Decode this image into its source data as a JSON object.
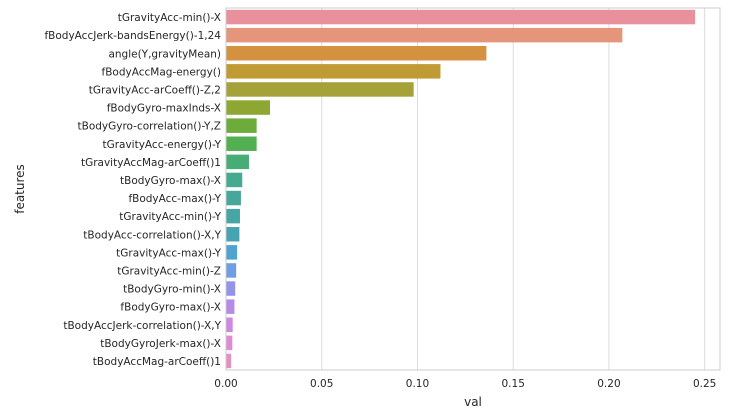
{
  "chart_data": {
    "type": "bar",
    "orientation": "horizontal",
    "xlabel": "val",
    "ylabel": "features",
    "xlim": [
      0,
      0.258
    ],
    "xticks": [
      0.0,
      0.05,
      0.1,
      0.15,
      0.2,
      0.25
    ],
    "xtick_labels": [
      "0.00",
      "0.05",
      "0.10",
      "0.15",
      "0.20",
      "0.25"
    ],
    "grid": "vertical",
    "legend": "none",
    "categories": [
      "tGravityAcc-min()-X",
      "fBodyAccJerk-bandsEnergy()-1,24",
      "angle(Y,gravityMean)",
      "fBodyAccMag-energy()",
      "tGravityAcc-arCoeff()-Z,2",
      "fBodyGyro-maxInds-X",
      "tBodyGyro-correlation()-Y,Z",
      "tGravityAcc-energy()-Y",
      "tGravityAccMag-arCoeff()1",
      "tBodyGyro-max()-X",
      "fBodyAcc-max()-Y",
      "tGravityAcc-min()-Y",
      "tBodyAcc-correlation()-X,Y",
      "tGravityAcc-max()-Y",
      "tGravityAcc-min()-Z",
      "tBodyGyro-min()-X",
      "fBodyGyro-max()-X",
      "tBodyAccJerk-correlation()-X,Y",
      "tBodyGyroJerk-max()-X",
      "tBodyAccMag-arCoeff()1"
    ],
    "values": [
      0.245,
      0.207,
      0.136,
      0.112,
      0.098,
      0.023,
      0.016,
      0.016,
      0.012,
      0.0085,
      0.0078,
      0.0073,
      0.007,
      0.0058,
      0.0053,
      0.0048,
      0.0044,
      0.0035,
      0.0033,
      0.0027
    ],
    "colors": [
      "#e8909c",
      "#e5967a",
      "#d4913f",
      "#c09a33",
      "#a6a23a",
      "#8da732",
      "#6dab3a",
      "#52b052",
      "#45ad75",
      "#46aa8e",
      "#47a79b",
      "#48a5a6",
      "#48a3b1",
      "#4ea3d1",
      "#6f9ee4",
      "#9493ea",
      "#b58ae8",
      "#cf88e0",
      "#e08ad4",
      "#e68fc3"
    ]
  }
}
